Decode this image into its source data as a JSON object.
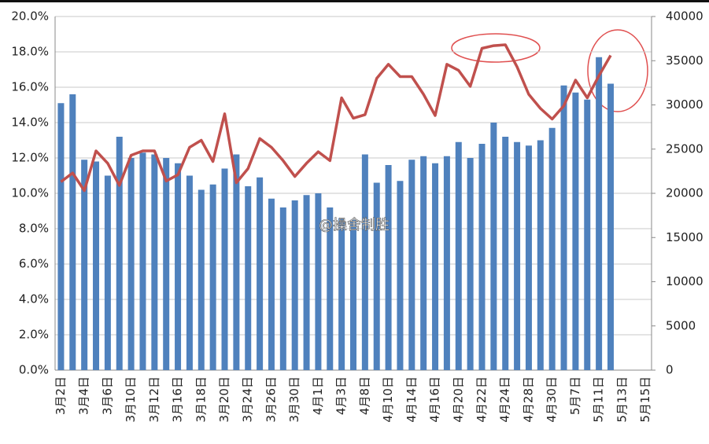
{
  "chart_data": {
    "type": "bar-line",
    "categories": [
      "3月2日",
      null,
      "3月4日",
      null,
      "3月6日",
      null,
      "3月10日",
      null,
      "3月12日",
      null,
      "3月16日",
      null,
      "3月18日",
      null,
      "3月20日",
      null,
      "3月24日",
      null,
      "3月26日",
      null,
      "3月30日",
      null,
      "4月1日",
      null,
      "4月3日",
      null,
      "4月8日",
      null,
      "4月10日",
      null,
      "4月14日",
      null,
      "4月16日",
      null,
      "4月20日",
      null,
      "4月22日",
      null,
      "4月24日",
      null,
      "4月28日",
      null,
      "4月30日",
      null,
      "5月7日",
      null,
      "5月11日",
      null,
      "5月13日",
      null,
      "5月15日"
    ],
    "series": [
      {
        "type": "bar",
        "color": "#4f81bd",
        "values": [
          15.1,
          15.6,
          11.9,
          11.8,
          11.0,
          13.2,
          12.0,
          12.3,
          12.2,
          12.0,
          11.7,
          11.0,
          10.2,
          10.5,
          11.4,
          12.2,
          10.4,
          10.9,
          9.7,
          9.2,
          9.6,
          9.9,
          10.0,
          9.2,
          8.6,
          8.5,
          12.2,
          10.6,
          11.6,
          10.7,
          11.9,
          12.1,
          11.7,
          12.1,
          12.9,
          12.0,
          12.8,
          14.0,
          13.2,
          12.9,
          12.7,
          13.0,
          13.7,
          16.1,
          15.7,
          15.3,
          17.7,
          16.2,
          null,
          null,
          null
        ]
      },
      {
        "type": "line",
        "axis": "y2",
        "color": "#c0504d",
        "values": [
          21300,
          22300,
          20300,
          24800,
          23400,
          20900,
          24300,
          24800,
          24800,
          21400,
          22100,
          25200,
          26000,
          23600,
          29000,
          21200,
          22800,
          26200,
          25200,
          23700,
          21900,
          23400,
          24700,
          23700,
          30800,
          28500,
          28900,
          33000,
          34600,
          33200,
          33200,
          31200,
          28800,
          34600,
          33900,
          32100,
          36400,
          36700,
          36800,
          34300,
          31200,
          29600,
          28400,
          29900,
          32800,
          30800,
          33300,
          35600,
          null,
          null,
          null
        ]
      }
    ],
    "ylim": [
      0,
      20
    ],
    "yticks": [
      {
        "value": 0,
        "label": "0.0%"
      },
      {
        "value": 2,
        "label": "2.0%"
      },
      {
        "value": 4,
        "label": "4.0%"
      },
      {
        "value": 6,
        "label": "6.0%"
      },
      {
        "value": 8,
        "label": "8.0%"
      },
      {
        "value": 10,
        "label": "10.0%"
      },
      {
        "value": 12,
        "label": "12.0%"
      },
      {
        "value": 14,
        "label": "14.0%"
      },
      {
        "value": 16,
        "label": "16.0%"
      },
      {
        "value": 18,
        "label": "18.0%"
      },
      {
        "value": 20,
        "label": "20.0%"
      }
    ],
    "y2lim": [
      0,
      40000
    ],
    "y2ticks": [
      0,
      5000,
      10000,
      15000,
      20000,
      25000,
      30000,
      35000,
      40000
    ],
    "grid": true,
    "watermark": "@操舍制胜"
  }
}
